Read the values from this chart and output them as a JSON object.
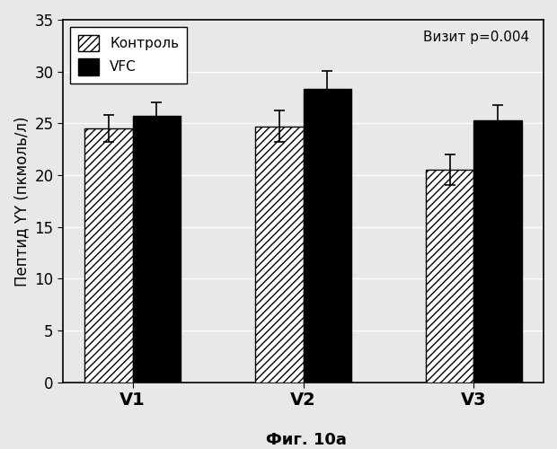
{
  "categories": [
    "V1",
    "V2",
    "V3"
  ],
  "control_values": [
    24.5,
    24.7,
    20.5
  ],
  "vfc_values": [
    25.7,
    28.3,
    25.3
  ],
  "control_errors": [
    1.3,
    1.5,
    1.5
  ],
  "vfc_errors": [
    1.3,
    1.8,
    1.5
  ],
  "ylabel": "Пептид YY (пкмоль/л)",
  "xlabel": "Фиг. 10а",
  "ylim": [
    0,
    35
  ],
  "yticks": [
    0,
    5,
    10,
    15,
    20,
    25,
    30,
    35
  ],
  "annotation": "Визит р=0.004",
  "legend_labels": [
    "Контроль",
    "VFC"
  ],
  "bar_width": 0.28,
  "background_color": "#e8e8e8",
  "plot_bg_color": "#e8e8e8",
  "ylabel_fontsize": 12,
  "tick_fontsize": 12,
  "legend_fontsize": 11,
  "annotation_fontsize": 11,
  "xlabel_fontsize": 13
}
